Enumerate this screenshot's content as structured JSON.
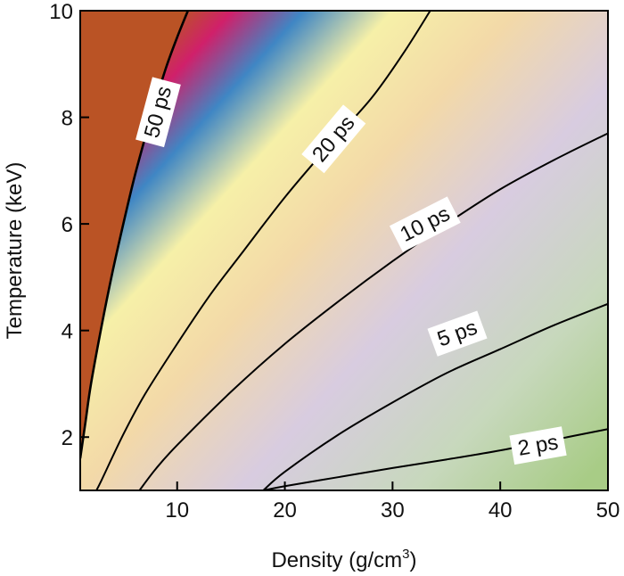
{
  "chart_data": {
    "type": "contour",
    "title": "",
    "xlabel_main": "Density  (g/cm",
    "xlabel_sup": "3",
    "xlabel_close": ")",
    "ylabel": "Temperature (keV)",
    "xlim": [
      1,
      50
    ],
    "ylim": [
      1,
      10
    ],
    "x_ticks": [
      10,
      20,
      30,
      40,
      50
    ],
    "y_ticks": [
      2,
      4,
      6,
      8,
      10
    ],
    "x_tick_labels": [
      "10",
      "20",
      "30",
      "40",
      "50"
    ],
    "y_tick_labels": [
      "2",
      "4",
      "6",
      "8",
      "10"
    ],
    "colors": {
      "saturated": "#BA5325",
      "gradient": [
        "#BA5325",
        "#D0206A",
        "#3F86C4",
        "#F6F0A8",
        "#F3D9A8",
        "#D8CCE0",
        "#C7D8BC",
        "#A8CC86"
      ]
    },
    "contours": [
      {
        "name": "50 ps",
        "label": "50 ps",
        "label_at": [
          8.2,
          8.1
        ],
        "label_angle": -75,
        "points": [
          [
            1.0,
            1.6
          ],
          [
            1.5,
            2.3
          ],
          [
            2,
            3.0
          ],
          [
            3,
            4.1
          ],
          [
            4,
            5.1
          ],
          [
            5,
            6.0
          ],
          [
            6,
            6.85
          ],
          [
            7,
            7.6
          ],
          [
            8,
            8.3
          ],
          [
            9,
            8.95
          ],
          [
            10,
            9.5
          ],
          [
            11,
            10.0
          ]
        ]
      },
      {
        "name": "20 ps",
        "label": "20 ps",
        "label_at": [
          24.5,
          7.6
        ],
        "label_angle": -50,
        "points": [
          [
            2.5,
            1.0
          ],
          [
            3,
            1.2
          ],
          [
            5,
            2.05
          ],
          [
            7,
            2.8
          ],
          [
            10,
            3.75
          ],
          [
            13,
            4.65
          ],
          [
            16,
            5.45
          ],
          [
            20,
            6.5
          ],
          [
            24,
            7.45
          ],
          [
            28,
            8.35
          ],
          [
            31,
            9.2
          ],
          [
            33.5,
            10.0
          ]
        ]
      },
      {
        "name": "10 ps",
        "label": "10 ps",
        "label_at": [
          33,
          6.0
        ],
        "label_angle": -27,
        "points": [
          [
            6.5,
            1.0
          ],
          [
            8,
            1.4
          ],
          [
            10,
            1.85
          ],
          [
            15,
            2.85
          ],
          [
            20,
            3.75
          ],
          [
            25,
            4.55
          ],
          [
            30,
            5.3
          ],
          [
            35,
            6.0
          ],
          [
            40,
            6.65
          ],
          [
            45,
            7.2
          ],
          [
            50,
            7.7
          ]
        ]
      },
      {
        "name": "5 ps",
        "label": "5 ps",
        "label_at": [
          36,
          3.95
        ],
        "label_angle": -20,
        "points": [
          [
            18,
            1.0
          ],
          [
            20,
            1.35
          ],
          [
            25,
            2.05
          ],
          [
            30,
            2.65
          ],
          [
            35,
            3.2
          ],
          [
            40,
            3.65
          ],
          [
            45,
            4.1
          ],
          [
            50,
            4.5
          ]
        ]
      },
      {
        "name": "2 ps",
        "label": "2 ps",
        "label_at": [
          43.5,
          1.85
        ],
        "label_angle": -10,
        "points": [
          [
            18,
            1.0
          ],
          [
            20,
            1.08
          ],
          [
            25,
            1.25
          ],
          [
            30,
            1.42
          ],
          [
            35,
            1.58
          ],
          [
            40,
            1.75
          ],
          [
            45,
            1.95
          ],
          [
            50,
            2.15
          ]
        ]
      }
    ]
  }
}
